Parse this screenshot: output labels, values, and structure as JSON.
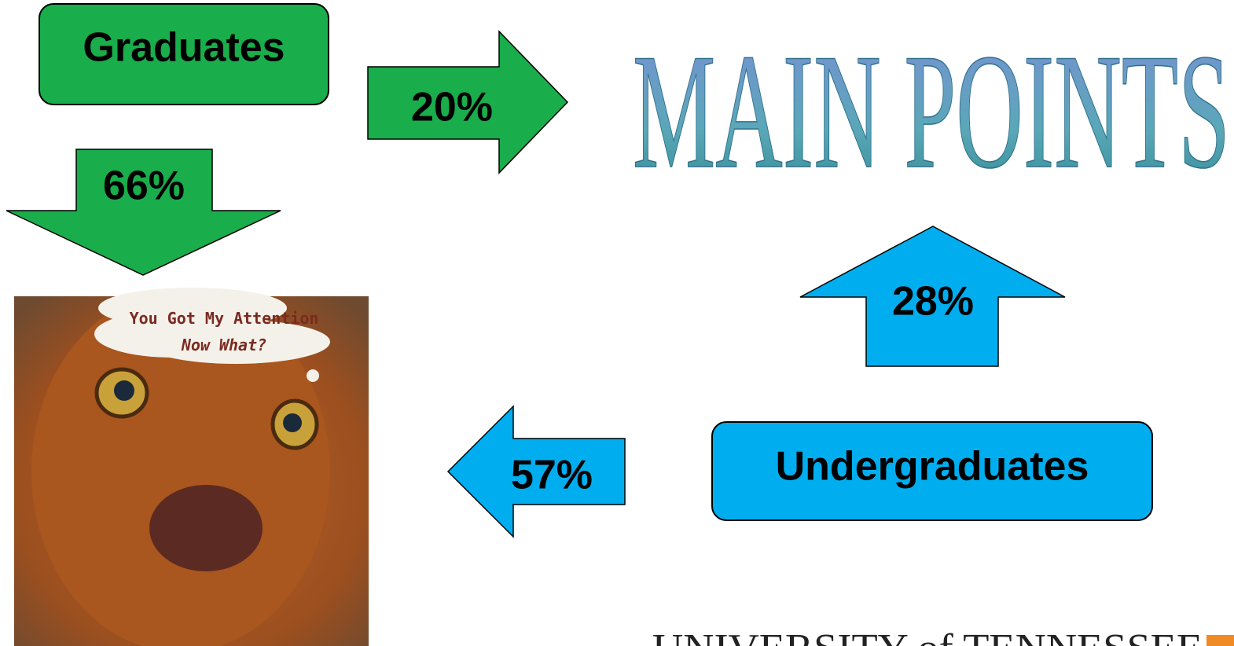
{
  "nodes": [
    {
      "label": "Graduates"
    },
    {
      "label": "Undergraduates"
    }
  ],
  "arrows": [
    {
      "label": "20%"
    },
    {
      "label": "66%"
    },
    {
      "label": "28%"
    },
    {
      "label": "57%"
    }
  ],
  "heading": "MAIN POINTS",
  "image": {
    "caption_line1": "You Got My Attention",
    "caption_line2": "Now What?"
  },
  "footer": "UNIVERSITY of TENNESSEE"
}
